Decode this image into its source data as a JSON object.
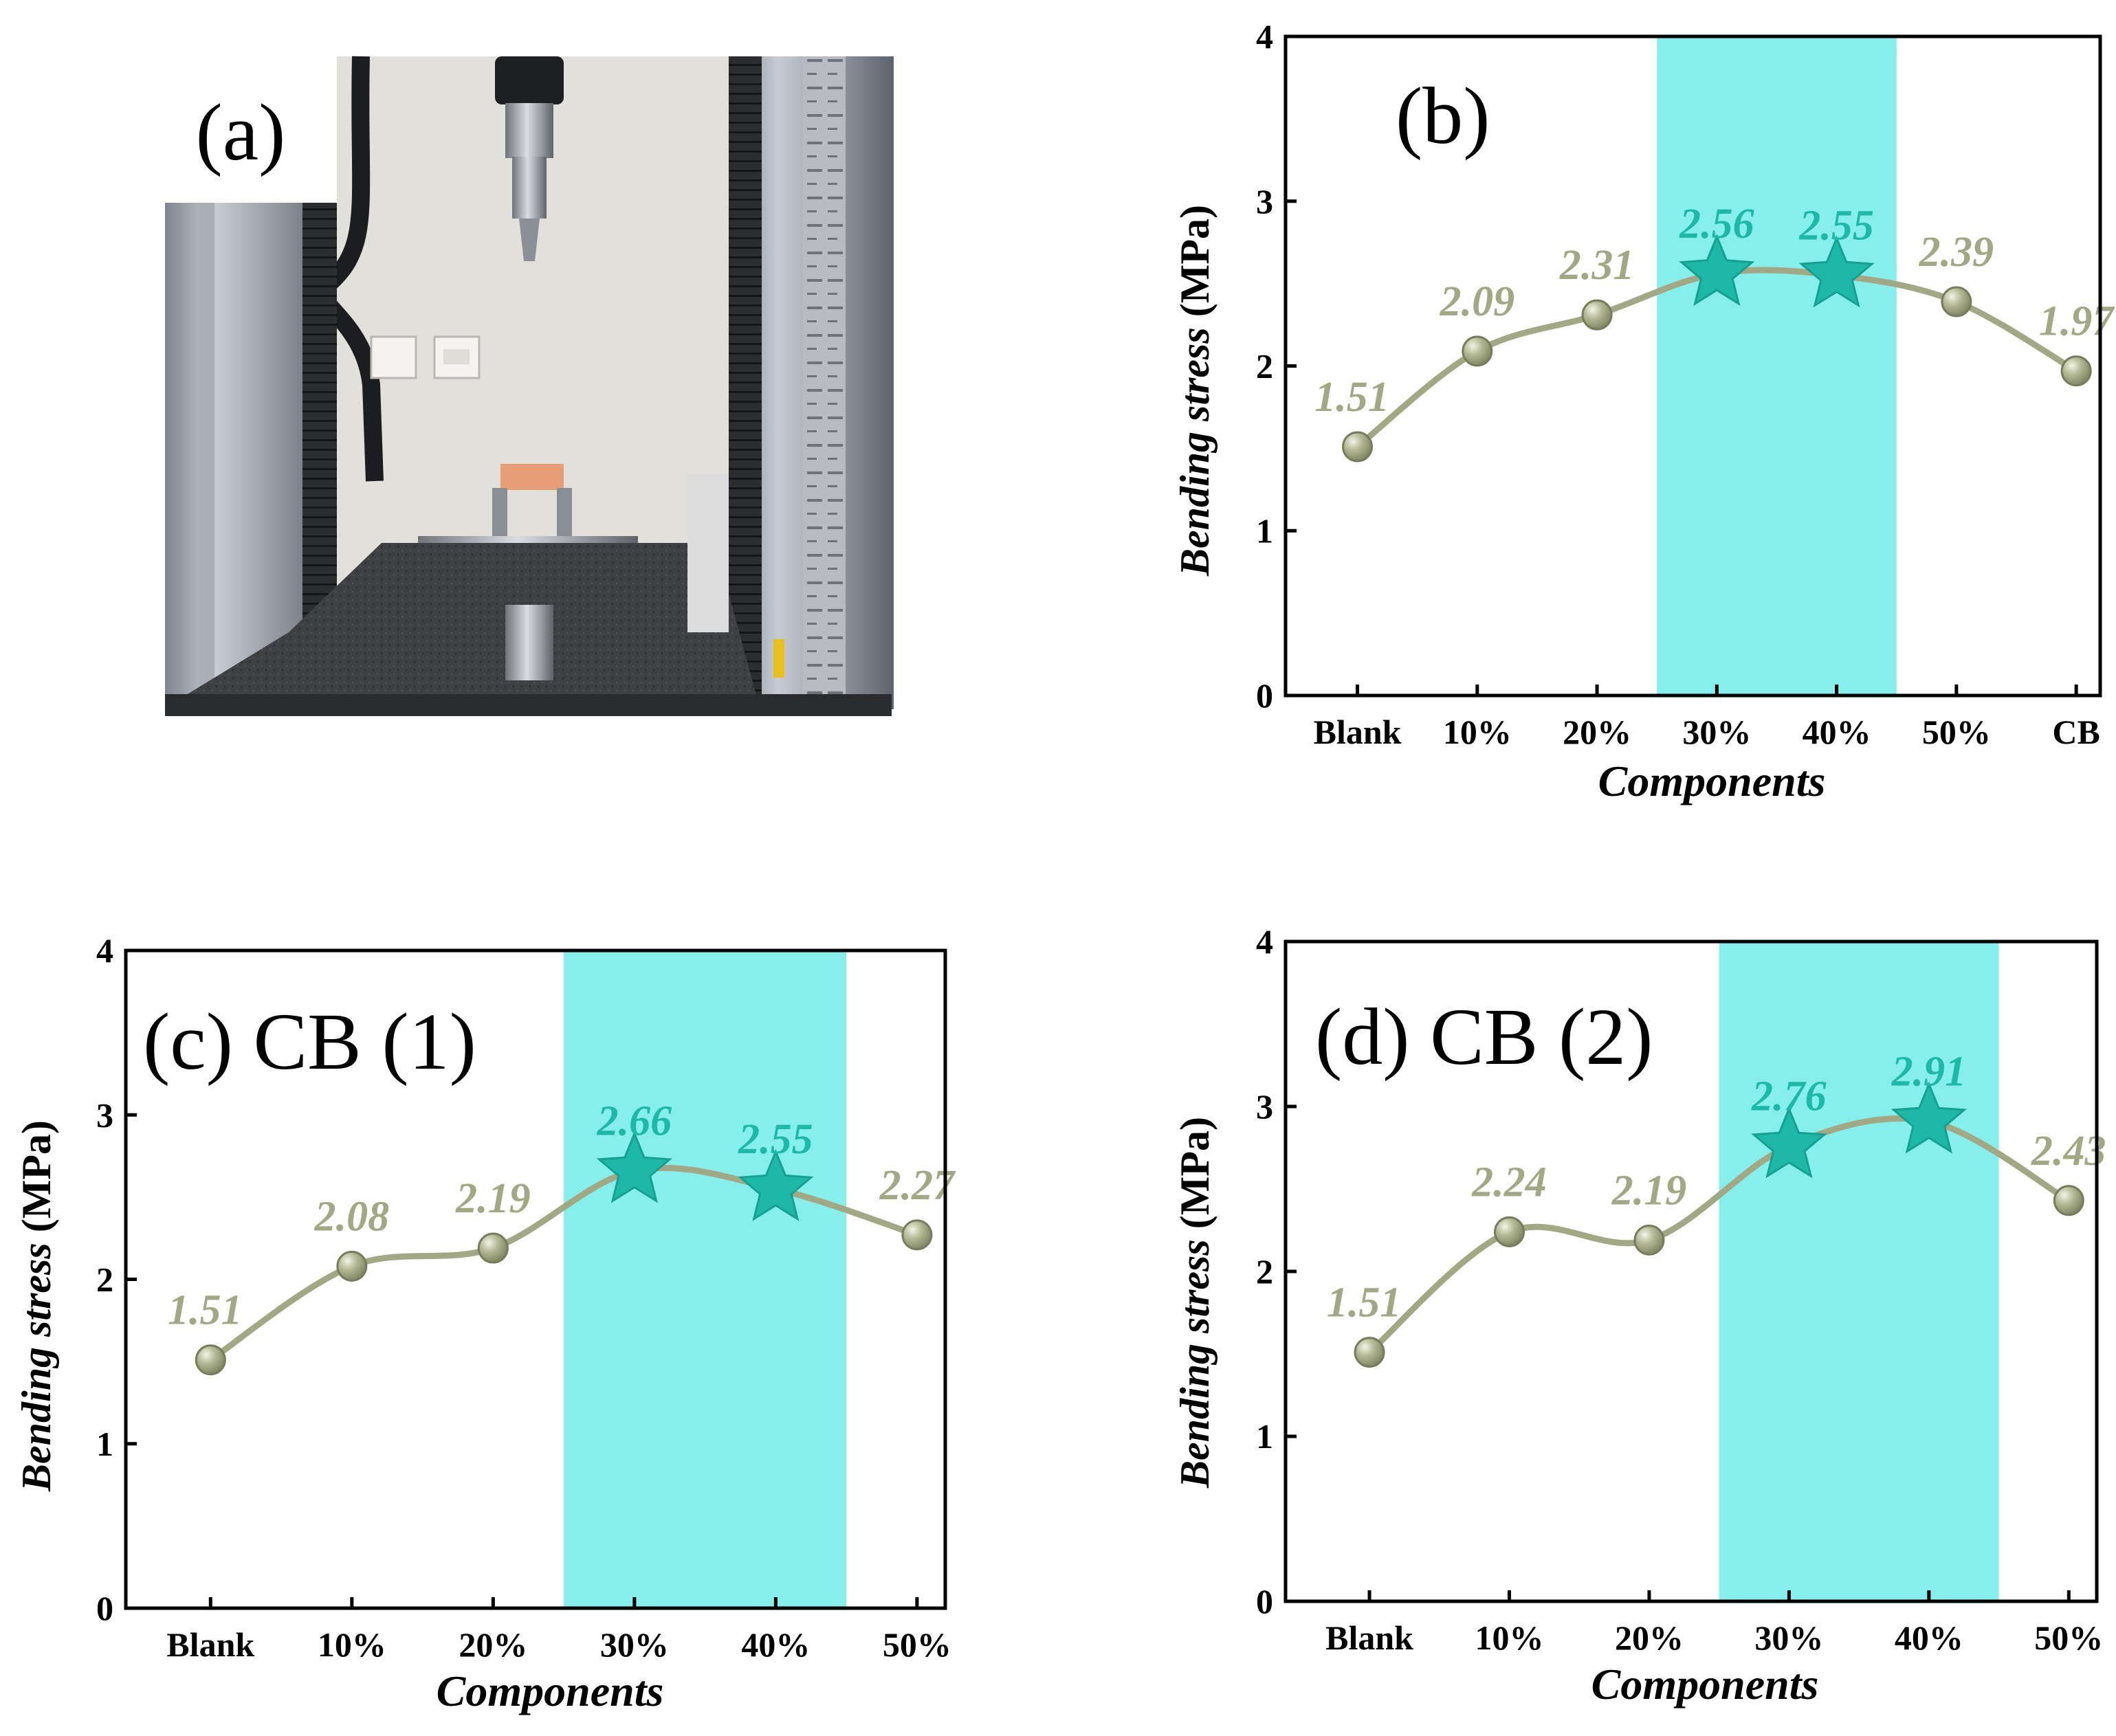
{
  "photo": {
    "label": "(a)"
  },
  "charts": {
    "b": {
      "title": "(b)"
    },
    "c": {
      "title": "(c) CB (1)"
    },
    "d": {
      "title": "(d) CB (2)"
    }
  },
  "chart_data": [
    {
      "id": "b",
      "type": "line",
      "title": "(b)",
      "xlabel": "Components",
      "ylabel_italic": "Bending stress",
      "ylabel_unit": "(MPa)",
      "categories": [
        "Blank",
        "10%",
        "20%",
        "30%",
        "40%",
        "50%",
        "CB"
      ],
      "values": [
        1.51,
        2.09,
        2.31,
        2.56,
        2.55,
        2.39,
        1.97
      ],
      "value_labels": [
        "1.51",
        "2.09",
        "2.31",
        "2.56",
        "2.55",
        "2.39",
        "1.97"
      ],
      "highlight_indices": [
        3,
        4
      ],
      "highlight_band": [
        2.5,
        4.5
      ],
      "ylim": [
        0,
        4
      ],
      "yticks": [
        0,
        1,
        2,
        3,
        4
      ],
      "ytick_labels": [
        "0",
        "1",
        "2",
        "3",
        "4"
      ],
      "colors": {
        "line": "#a3a884",
        "marker": "#a3a884",
        "label": "#a3a884",
        "highlight": "#1db8a8",
        "band": "#87efeb"
      }
    },
    {
      "id": "c",
      "type": "line",
      "title": "(c) CB (1)",
      "xlabel": "Components",
      "ylabel_italic": "Bending stress",
      "ylabel_unit": "(MPa)",
      "categories": [
        "Blank",
        "10%",
        "20%",
        "30%",
        "40%",
        "50%"
      ],
      "values": [
        1.51,
        2.08,
        2.19,
        2.66,
        2.55,
        2.27
      ],
      "value_labels": [
        "1.51",
        "2.08",
        "2.19",
        "2.66",
        "2.55",
        "2.27"
      ],
      "highlight_indices": [
        3,
        4
      ],
      "highlight_band": [
        2.5,
        4.5
      ],
      "ylim": [
        0,
        4
      ],
      "yticks": [
        0,
        1,
        2,
        3,
        4
      ],
      "ytick_labels": [
        "0",
        "1",
        "2",
        "3",
        "4"
      ],
      "colors": {
        "line": "#a3a884",
        "marker": "#a3a884",
        "label": "#a3a884",
        "highlight": "#1db8a8",
        "band": "#87efeb"
      }
    },
    {
      "id": "d",
      "type": "line",
      "title": "(d) CB (2)",
      "xlabel": "Components",
      "ylabel_italic": "Bending stress",
      "ylabel_unit": "(MPa)",
      "categories": [
        "Blank",
        "10%",
        "20%",
        "30%",
        "40%",
        "50%"
      ],
      "values": [
        1.51,
        2.24,
        2.19,
        2.76,
        2.91,
        2.43
      ],
      "value_labels": [
        "1.51",
        "2.24",
        "2.19",
        "2.76",
        "2.91",
        "2.43"
      ],
      "highlight_indices": [
        3,
        4
      ],
      "highlight_band": [
        2.5,
        4.5
      ],
      "ylim": [
        0,
        4
      ],
      "yticks": [
        0,
        1,
        2,
        3,
        4
      ],
      "ytick_labels": [
        "0",
        "1",
        "2",
        "3",
        "4"
      ],
      "colors": {
        "line": "#a3a884",
        "marker": "#a3a884",
        "label": "#a3a884",
        "highlight": "#1db8a8",
        "band": "#87efeb"
      }
    }
  ]
}
